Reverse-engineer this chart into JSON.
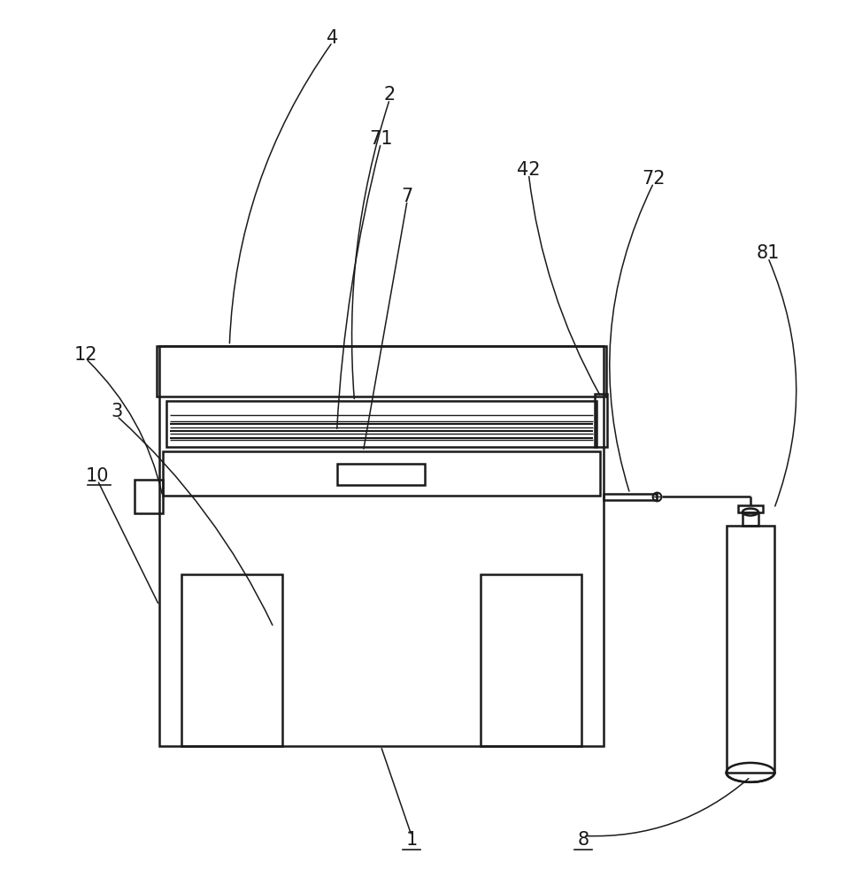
{
  "bg_color": "#ffffff",
  "line_color": "#1a1a1a",
  "fig_width": 9.74,
  "fig_height": 10.0,
  "lw_main": 1.8,
  "lw_thin": 1.0,
  "label_fs": 15
}
